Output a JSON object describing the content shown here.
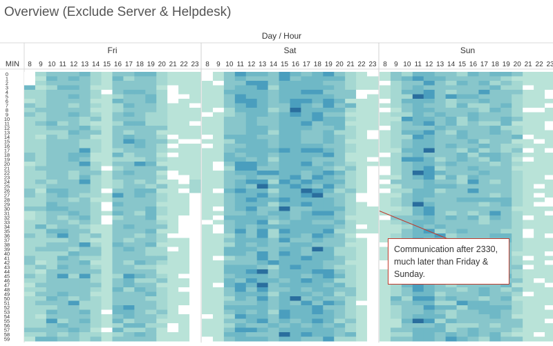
{
  "page": {
    "title": "Overview (Exclude Server & Helpdesk)"
  },
  "chart_data": {
    "type": "heatmap",
    "title": "Overview (Exclude Server & Helpdesk)",
    "column_header": "Day / Hour",
    "row_header": "MIN",
    "days": [
      "Fri",
      "Sat",
      "Sun"
    ],
    "hours": [
      8,
      9,
      10,
      11,
      12,
      13,
      14,
      15,
      16,
      17,
      18,
      19,
      20,
      21,
      22,
      23
    ],
    "minutes": [
      0,
      1,
      2,
      3,
      4,
      5,
      6,
      7,
      8,
      9,
      10,
      11,
      12,
      13,
      14,
      15,
      16,
      17,
      18,
      19,
      20,
      21,
      22,
      23,
      24,
      25,
      26,
      27,
      28,
      29,
      30,
      31,
      32,
      33,
      34,
      35,
      36,
      37,
      38,
      39,
      40,
      41,
      42,
      43,
      44,
      45,
      46,
      47,
      48,
      49,
      50,
      51,
      52,
      53,
      54,
      55,
      56,
      57,
      58,
      59
    ],
    "value_scale": [
      0,
      6
    ],
    "colors": [
      "#ffffff",
      "#b9e3d8",
      "#a5d8d2",
      "#88c6cb",
      "#6fb8c6",
      "#4a9ebe",
      "#2a6e9e"
    ],
    "activity_profile": {
      "Fri": [
        2,
        2,
        3,
        3,
        3,
        3,
        2,
        1,
        3,
        3,
        3,
        3,
        2,
        1,
        1,
        1
      ],
      "Sat": [
        1,
        1,
        3,
        4,
        4,
        4,
        3,
        4,
        4,
        4,
        4,
        4,
        3,
        2,
        1,
        1
      ],
      "Sun": [
        1,
        2,
        3,
        4,
        4,
        3,
        3,
        3,
        3,
        3,
        3,
        3,
        2,
        1,
        1,
        1
      ]
    },
    "annotation": {
      "text": "Communication after 2330, much later than Friday & Sunday.",
      "day": "Sat",
      "hour": 23,
      "minute": 30
    }
  }
}
